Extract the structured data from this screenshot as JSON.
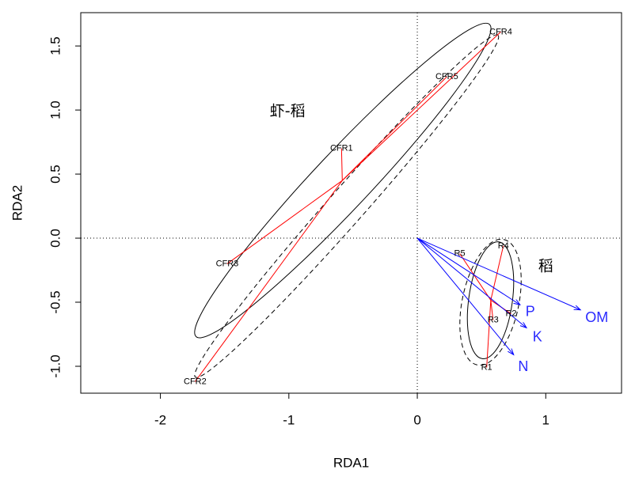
{
  "chart_data": {
    "type": "scatter",
    "xlabel": "RDA1",
    "ylabel": "RDA2",
    "xlim": [
      -2.62,
      1.59
    ],
    "ylim": [
      -1.21,
      1.76
    ],
    "xticks": [
      -2,
      -1,
      0,
      1
    ],
    "xtick_labels": [
      "-2",
      "-1",
      "0",
      "1"
    ],
    "yticks": [
      -1.0,
      -0.5,
      0.0,
      0.5,
      1.0,
      1.5
    ],
    "ytick_labels": [
      "-1.0",
      "-0.5",
      "0.0",
      "0.5",
      "1.0",
      "1.5"
    ],
    "grid": false,
    "reference_lines": {
      "x": 0,
      "y": 0,
      "style": "dotted"
    },
    "groups": [
      {
        "name": "虾-稻",
        "points": [
          {
            "label": "CFR1",
            "x": -0.59,
            "y": 0.7
          },
          {
            "label": "CFR2",
            "x": -1.73,
            "y": -1.12
          },
          {
            "label": "CFR3",
            "x": -1.48,
            "y": -0.2
          },
          {
            "label": "CFR4",
            "x": 0.65,
            "y": 1.61
          },
          {
            "label": "CFR5",
            "x": 0.23,
            "y": 1.26
          }
        ]
      },
      {
        "name": "稻",
        "points": [
          {
            "label": "R1",
            "x": 0.54,
            "y": -1.01
          },
          {
            "label": "R2",
            "x": 0.73,
            "y": -0.59
          },
          {
            "label": "R3",
            "x": 0.59,
            "y": -0.64
          },
          {
            "label": "R4",
            "x": 0.67,
            "y": -0.06
          },
          {
            "label": "R5",
            "x": 0.33,
            "y": -0.12
          }
        ]
      }
    ],
    "vectors": [
      {
        "label": "OM",
        "x": 1.27,
        "y": -0.56
      },
      {
        "label": "P",
        "x": 0.8,
        "y": -0.52
      },
      {
        "label": "K",
        "x": 0.85,
        "y": -0.7
      },
      {
        "label": "N",
        "x": 0.75,
        "y": -0.91
      }
    ],
    "colors": {
      "spider": "#ff0000",
      "vectors": "#0000ff",
      "vector_labels": "#2a2aff",
      "ellipses": "#000000",
      "axis": "#000000"
    }
  }
}
